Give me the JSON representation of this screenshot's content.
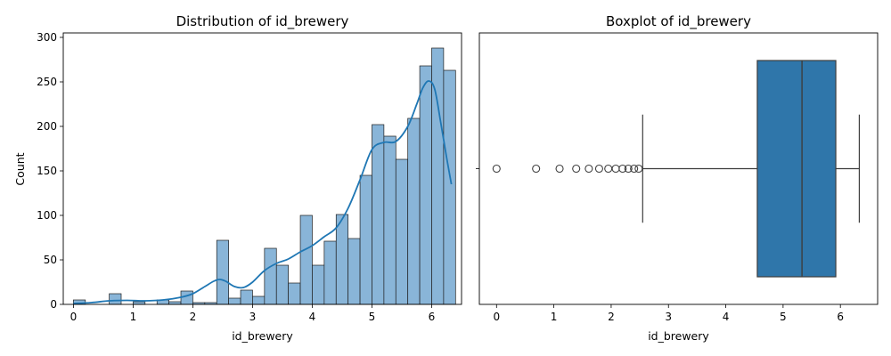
{
  "chart_data": [
    {
      "type": "bar",
      "subtype": "histogram-with-kde",
      "title": "Distribution of id_brewery",
      "xlabel": "id_brewery",
      "ylabel": "Count",
      "xlim": [
        -0.17,
        6.5
      ],
      "ylim": [
        0,
        305
      ],
      "xticks": [
        0,
        1,
        2,
        3,
        4,
        5,
        6
      ],
      "yticks": [
        0,
        50,
        100,
        150,
        200,
        250,
        300
      ],
      "bin_width": 0.2,
      "bin_start": 0.0,
      "values": [
        5,
        0,
        0,
        12,
        0,
        3,
        0,
        5,
        3,
        15,
        2,
        2,
        72,
        7,
        16,
        9,
        63,
        44,
        24,
        100,
        44,
        71,
        101,
        74,
        145,
        202,
        189,
        163,
        209,
        268,
        288,
        263
      ],
      "kde": {
        "x": [
          0,
          0.3,
          0.6,
          0.9,
          1.2,
          1.5,
          1.8,
          2.0,
          2.2,
          2.35,
          2.45,
          2.55,
          2.7,
          2.85,
          3.0,
          3.2,
          3.4,
          3.6,
          3.8,
          4.0,
          4.2,
          4.4,
          4.6,
          4.8,
          5.0,
          5.2,
          5.4,
          5.6,
          5.75,
          5.85,
          5.95,
          6.05,
          6.15,
          6.25,
          6.33
        ],
        "y": [
          1,
          2,
          4,
          4.5,
          4,
          5,
          8,
          12,
          20,
          26,
          28,
          26,
          20,
          19,
          25,
          38,
          46,
          51,
          59,
          66,
          76,
          86,
          108,
          140,
          174,
          182,
          183,
          200,
          225,
          243,
          251,
          242,
          205,
          165,
          135
        ]
      },
      "colors": {
        "bar_fill": "#89b5d8",
        "bar_edge": "#1f1f1f",
        "kde": "#1f77b4"
      }
    },
    {
      "type": "boxplot",
      "title": "Boxplot of id_brewery",
      "xlabel": "id_brewery",
      "xlim": [
        -0.3,
        6.65
      ],
      "xticks": [
        0,
        1,
        2,
        3,
        4,
        5,
        6
      ],
      "box": {
        "whisker_low": 2.55,
        "q1": 4.55,
        "median": 5.33,
        "q3": 5.92,
        "whisker_high": 6.33
      },
      "outliers": [
        0,
        0.69,
        1.1,
        1.39,
        1.61,
        1.79,
        1.95,
        2.08,
        2.2,
        2.3,
        2.4,
        2.48
      ],
      "colors": {
        "box_fill": "#2f76aa",
        "line": "#3d3d3d"
      }
    }
  ]
}
